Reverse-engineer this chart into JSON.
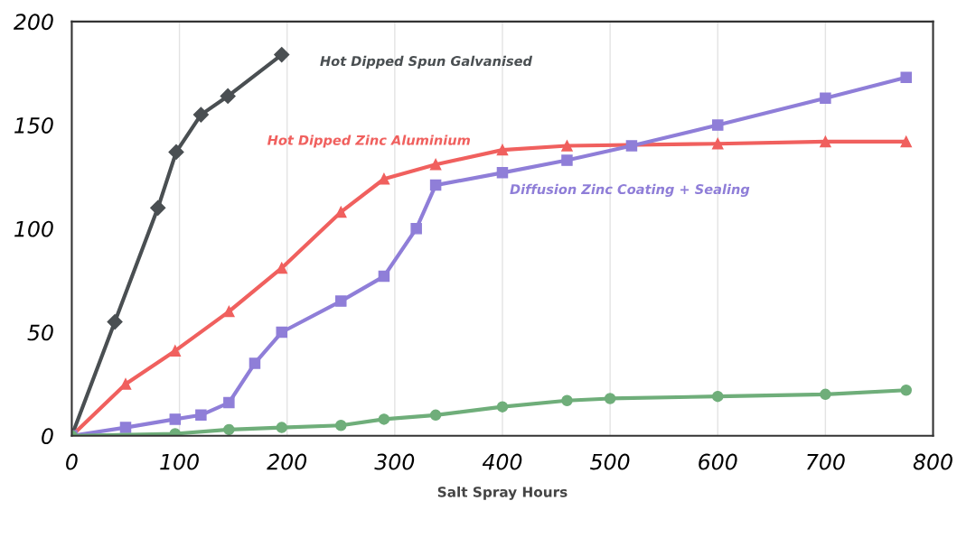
{
  "chart_data": {
    "type": "line",
    "xlabel": "Salt Spray Hours",
    "xlim": [
      0,
      800
    ],
    "xticks": [
      0,
      100,
      200,
      300,
      400,
      500,
      600,
      700,
      800
    ],
    "ylim": [
      0,
      200
    ],
    "yticks": [
      0,
      50,
      100,
      150,
      200
    ],
    "grid": "x",
    "legend": false,
    "line_style": "solid",
    "series": [
      {
        "name": "Hot Dipped Spun Galvanised",
        "color": "#4a4f52",
        "marker": "diamond",
        "x": [
          0,
          40,
          80,
          97,
          120,
          145,
          195
        ],
        "values": [
          0,
          55,
          110,
          137,
          155,
          164,
          184
        ]
      },
      {
        "name": "Hot Dipped Zinc Aluminium",
        "color": "#f0605e",
        "marker": "triangle",
        "x": [
          0,
          50,
          96,
          146,
          195,
          250,
          290,
          338,
          400,
          460,
          600,
          700,
          775
        ],
        "values": [
          0,
          25,
          41,
          60,
          81,
          108,
          124,
          131,
          138,
          140,
          141,
          142,
          142
        ]
      },
      {
        "name": "Diffusion Zinc Coating + Sealing",
        "color": "#8f7ed8",
        "marker": "square",
        "x": [
          0,
          50,
          96,
          120,
          146,
          170,
          195,
          250,
          290,
          320,
          338,
          400,
          460,
          520,
          600,
          700,
          775
        ],
        "values": [
          0,
          4,
          8,
          10,
          16,
          35,
          50,
          65,
          77,
          100,
          121,
          127,
          133,
          140,
          150,
          163,
          173
        ]
      },
      {
        "color": "#6fae7a",
        "marker": "circle",
        "x": [
          0,
          96,
          146,
          195,
          250,
          290,
          338,
          400,
          460,
          500,
          600,
          700,
          775
        ],
        "values": [
          0,
          1,
          3,
          4,
          5,
          8,
          10,
          14,
          17,
          18,
          19,
          20,
          22
        ]
      }
    ]
  }
}
